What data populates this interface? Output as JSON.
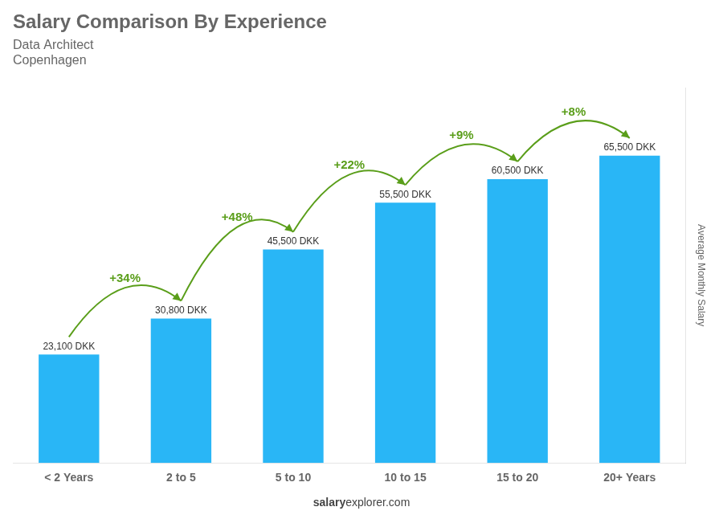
{
  "chart_data": {
    "type": "bar",
    "title": "Salary Comparison By Experience",
    "subtitle": [
      "Data Architect",
      "Copenhagen"
    ],
    "ylabel": "Average Monthly Salary",
    "categories": [
      "< 2 Years",
      "2 to 5",
      "5 to 10",
      "10 to 15",
      "15 to 20",
      "20+ Years"
    ],
    "values": [
      23100,
      30800,
      45500,
      55500,
      60500,
      65500
    ],
    "value_labels": [
      "23,100 DKK",
      "30,800 DKK",
      "45,500 DKK",
      "55,500 DKK",
      "60,500 DKK",
      "65,500 DKK"
    ],
    "data_labels": true,
    "annotations": [
      "+34%",
      "+48%",
      "+22%",
      "+9%",
      "+8%"
    ],
    "footer": [
      "salary",
      "explorer.com"
    ],
    "color": "#29b6f6",
    "ylim": [
      0,
      80000
    ],
    "yticks": [],
    "tick_labels": "x",
    "grid": false
  }
}
